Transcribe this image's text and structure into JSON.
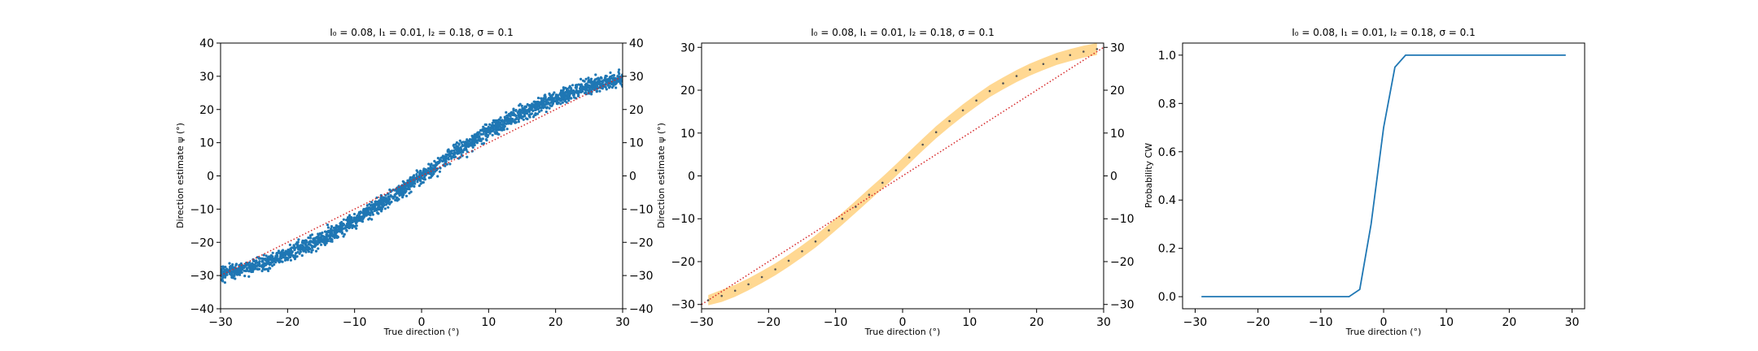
{
  "chart_data": [
    {
      "type": "scatter",
      "title": "$I_0 = 0.08$, $I_1 = 0.01$, $I_2 = 0.18$, $\\sigma = 0.1$",
      "title_display": "I₀ = 0.08, I₁ = 0.01, I₂ = 0.18, σ = 0.1",
      "xlabel": "True direction (°)",
      "ylabel": "Direction estimate ψ (°)",
      "xlim": [
        -30,
        30
      ],
      "ylim": [
        -40,
        40
      ],
      "xticks": [
        "−30",
        "−20",
        "−10",
        "0",
        "10",
        "20",
        "30"
      ],
      "yticks": [
        "−40",
        "−30",
        "−20",
        "−10",
        "0",
        "10",
        "20",
        "30",
        "40"
      ],
      "right_yticks": [
        "−40",
        "−30",
        "−20",
        "−10",
        "0",
        "10",
        "20",
        "30",
        "40"
      ],
      "point_color": "#1f77b4",
      "identity_line_color": "#d62728",
      "grid": false,
      "series": [
        {
          "kind": "scatter",
          "description": "noisy estimates along sigmoid-shaped curve",
          "x": [
            -30,
            -25,
            -20,
            -15,
            -10,
            -5,
            0,
            5,
            10,
            15,
            20,
            25,
            30
          ],
          "y": [
            -29.5,
            -27,
            -23.5,
            -19,
            -13.5,
            -7,
            0,
            7,
            13.5,
            19,
            23.5,
            27,
            29.5
          ]
        },
        {
          "kind": "line",
          "style": "dotted",
          "x": [
            -30,
            30
          ],
          "y": [
            -30,
            30
          ]
        }
      ]
    },
    {
      "type": "line",
      "title": "$I_0 = 0.08$, $I_1 = 0.01$, $I_2 = 0.18$, $\\sigma = 0.1$",
      "title_display": "I₀ = 0.08, I₁ = 0.01, I₂ = 0.18, σ = 0.1",
      "xlabel": "True direction (°)",
      "ylabel": "Direction estimate ψ (°)",
      "xlim": [
        -30,
        30
      ],
      "ylim": [
        -31,
        31
      ],
      "xticks": [
        "−30",
        "−20",
        "−10",
        "0",
        "10",
        "20",
        "30"
      ],
      "yticks": [
        "−30",
        "−20",
        "−10",
        "0",
        "10",
        "20",
        "30"
      ],
      "right_yticks": [
        "−30",
        "−20",
        "−10",
        "0",
        "10",
        "20",
        "30"
      ],
      "band_color": "#ffc864",
      "marker_color": "#555555",
      "identity_line_color": "#d62728",
      "grid": false,
      "series": [
        {
          "kind": "band",
          "x": [
            -29,
            -27,
            -25,
            -23,
            -21,
            -19,
            -17,
            -15,
            -13,
            -11,
            -9,
            -7,
            -5,
            -3,
            -1,
            1,
            3,
            5,
            7,
            9,
            11,
            13,
            15,
            17,
            19,
            21,
            23,
            25,
            27,
            29
          ],
          "mean": [
            -29,
            -28,
            -26.8,
            -25.3,
            -23.6,
            -21.8,
            -19.8,
            -17.6,
            -15.3,
            -12.7,
            -10,
            -7.2,
            -4.4,
            -1.6,
            1.3,
            4.3,
            7.3,
            10.2,
            12.8,
            15.3,
            17.6,
            19.8,
            21.6,
            23.3,
            24.8,
            26.1,
            27.3,
            28.2,
            29,
            29.6
          ],
          "upper": [
            -27.8,
            -26.6,
            -25.4,
            -23.9,
            -22.2,
            -20.4,
            -18.4,
            -16.2,
            -13.9,
            -11.3,
            -8.6,
            -5.8,
            -3,
            -0.2,
            2.7,
            5.7,
            8.7,
            11.6,
            14.2,
            16.7,
            19,
            21.2,
            23,
            24.7,
            26.2,
            27.5,
            28.7,
            29.6,
            30.4,
            31
          ],
          "lower": [
            -30.2,
            -29.4,
            -28.2,
            -26.7,
            -25,
            -23.2,
            -21.2,
            -19,
            -16.7,
            -14.1,
            -11.4,
            -8.6,
            -5.8,
            -3,
            -0.1,
            2.9,
            5.9,
            8.8,
            11.4,
            13.9,
            16.2,
            18.4,
            20.2,
            21.9,
            23.4,
            24.7,
            25.9,
            26.8,
            27.6,
            28.2
          ]
        },
        {
          "kind": "line",
          "style": "dotted",
          "x": [
            -30,
            30
          ],
          "y": [
            -30,
            30
          ]
        }
      ]
    },
    {
      "type": "line",
      "title": "$I_0 = 0.08$, $I_1 = 0.01$, $I_2 = 0.18$, $\\sigma = 0.1$",
      "title_display": "I₀ = 0.08, I₁ = 0.01, I₂ = 0.18, σ = 0.1",
      "xlabel": "True direction (°)",
      "ylabel": "Probability CW",
      "xlim": [
        -32,
        32
      ],
      "ylim": [
        -0.05,
        1.05
      ],
      "xticks": [
        "−30",
        "−20",
        "−10",
        "0",
        "10",
        "20",
        "30"
      ],
      "yticks": [
        "0.0",
        "0.2",
        "0.4",
        "0.6",
        "0.8",
        "1.0"
      ],
      "line_color": "#1f77b4",
      "grid": false,
      "series": [
        {
          "kind": "line",
          "x": [
            -29,
            -27,
            -25,
            -23,
            -21,
            -19,
            -17,
            -15,
            -13,
            -11,
            -9,
            -7,
            -5.5,
            -3.8,
            -2,
            0,
            1.8,
            3.5,
            5,
            7,
            9,
            11,
            13,
            15,
            17,
            19,
            21,
            23,
            25,
            27,
            29
          ],
          "y": [
            0,
            0,
            0,
            0,
            0,
            0,
            0,
            0,
            0,
            0,
            0,
            0,
            0,
            0.03,
            0.3,
            0.7,
            0.95,
            1,
            1,
            1,
            1,
            1,
            1,
            1,
            1,
            1,
            1,
            1,
            1,
            1,
            1
          ]
        }
      ]
    }
  ]
}
